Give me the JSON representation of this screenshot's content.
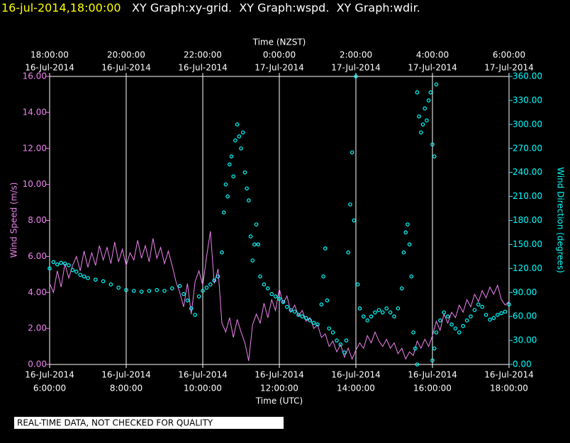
{
  "chart_data": {
    "type": "line",
    "timestamp": "16-jul-2014,18:00:00",
    "title": "XY Graph:xy-grid.  XY Graph:wspd.  XY Graph:wdir.",
    "xlabel": "Time (UTC)",
    "x2label": "Time (NZST)",
    "ylabel": "Wind Speed (m/s)",
    "y2label": "Wind Direction (degrees)",
    "note": "REAL-TIME DATA, NOT CHECKED FOR QUALITY",
    "grid": true,
    "xlim": [
      6,
      18
    ],
    "xticks": [
      {
        "value": 6,
        "label": [
          "16-Jul-2014",
          "6:00:00"
        ]
      },
      {
        "value": 8,
        "label": [
          "16-Jul-2014",
          "8:00:00"
        ]
      },
      {
        "value": 10,
        "label": [
          "16-Jul-2014",
          "10:00:00"
        ]
      },
      {
        "value": 12,
        "label": [
          "16-Jul-2014",
          "12:00:00"
        ]
      },
      {
        "value": 14,
        "label": [
          "16-Jul-2014",
          "14:00:00"
        ]
      },
      {
        "value": 16,
        "label": [
          "16-Jul-2014",
          "16:00:00"
        ]
      },
      {
        "value": 18,
        "label": [
          "16-Jul-2014",
          "18:00:00"
        ]
      }
    ],
    "x2ticks": [
      {
        "value": 6,
        "label": [
          "18:00:00",
          "16-Jul-2014"
        ]
      },
      {
        "value": 8,
        "label": [
          "20:00:00",
          "16-Jul-2014"
        ]
      },
      {
        "value": 10,
        "label": [
          "22:00:00",
          "16-Jul-2014"
        ]
      },
      {
        "value": 12,
        "label": [
          "0:00:00",
          "17-Jul-2014"
        ]
      },
      {
        "value": 14,
        "label": [
          "2:00:00",
          "17-Jul-2014"
        ]
      },
      {
        "value": 16,
        "label": [
          "4:00:00",
          "17-Jul-2014"
        ]
      },
      {
        "value": 18,
        "label": [
          "6:00:00",
          "17-Jul-2014"
        ]
      }
    ],
    "ylim": [
      0,
      16
    ],
    "yticks": [
      {
        "value": 0,
        "label": "0.00"
      },
      {
        "value": 2,
        "label": "2.00"
      },
      {
        "value": 4,
        "label": "4.00"
      },
      {
        "value": 6,
        "label": "6.00"
      },
      {
        "value": 8,
        "label": "8.00"
      },
      {
        "value": 10,
        "label": "10.00"
      },
      {
        "value": 12,
        "label": "12.00"
      },
      {
        "value": 14,
        "label": "14.00"
      },
      {
        "value": 16,
        "label": "16.00"
      }
    ],
    "y2lim": [
      0,
      360
    ],
    "y2ticks": [
      {
        "value": 0,
        "label": "0.00"
      },
      {
        "value": 30,
        "label": "30.00"
      },
      {
        "value": 60,
        "label": "60.00"
      },
      {
        "value": 90,
        "label": "90.00"
      },
      {
        "value": 120,
        "label": "120.00"
      },
      {
        "value": 150,
        "label": "150.00"
      },
      {
        "value": 180,
        "label": "180.00"
      },
      {
        "value": 210,
        "label": "210.00"
      },
      {
        "value": 240,
        "label": "240.00"
      },
      {
        "value": 270,
        "label": "270.00"
      },
      {
        "value": 300,
        "label": "300.00"
      },
      {
        "value": 330,
        "label": "330.00"
      },
      {
        "value": 360,
        "label": "360.00"
      }
    ],
    "series": [
      {
        "type": "line",
        "color": "#ee82ee",
        "axis": "y",
        "x": [
          6.0,
          6.1,
          6.2,
          6.3,
          6.4,
          6.5,
          6.6,
          6.7,
          6.8,
          6.9,
          7.0,
          7.1,
          7.2,
          7.3,
          7.4,
          7.5,
          7.6,
          7.7,
          7.8,
          7.9,
          8.0,
          8.1,
          8.2,
          8.3,
          8.4,
          8.5,
          8.6,
          8.7,
          8.8,
          8.9,
          9.0,
          9.1,
          9.2,
          9.3,
          9.4,
          9.5,
          9.6,
          9.7,
          9.8,
          9.9,
          10.0,
          10.1,
          10.2,
          10.3,
          10.4,
          10.5,
          10.6,
          10.7,
          10.8,
          10.9,
          11.0,
          11.1,
          11.2,
          11.3,
          11.4,
          11.5,
          11.6,
          11.7,
          11.8,
          11.9,
          12.0,
          12.1,
          12.2,
          12.3,
          12.4,
          12.5,
          12.6,
          12.7,
          12.8,
          12.9,
          13.0,
          13.1,
          13.2,
          13.3,
          13.4,
          13.5,
          13.6,
          13.7,
          13.8,
          13.9,
          14.0,
          14.1,
          14.2,
          14.3,
          14.4,
          14.5,
          14.6,
          14.7,
          14.8,
          14.9,
          15.0,
          15.1,
          15.2,
          15.3,
          15.4,
          15.5,
          15.6,
          15.7,
          15.8,
          15.9,
          16.0,
          16.1,
          16.2,
          16.3,
          16.4,
          16.5,
          16.6,
          16.7,
          16.8,
          16.9,
          17.0,
          17.1,
          17.2,
          17.3,
          17.4,
          17.5,
          17.6,
          17.7,
          17.8,
          17.9,
          18.0
        ],
        "values": [
          4.5,
          4.0,
          5.2,
          4.3,
          5.6,
          4.8,
          5.5,
          6.0,
          5.2,
          6.3,
          5.4,
          6.2,
          5.5,
          6.6,
          5.8,
          6.5,
          5.6,
          6.8,
          5.7,
          6.4,
          5.5,
          6.2,
          5.8,
          6.9,
          5.9,
          6.6,
          5.7,
          7.0,
          5.9,
          6.5,
          5.6,
          6.3,
          5.5,
          4.6,
          4.0,
          3.2,
          4.5,
          2.8,
          4.6,
          5.2,
          4.4,
          6.0,
          7.4,
          4.5,
          5.3,
          2.3,
          1.8,
          2.6,
          1.5,
          2.5,
          1.8,
          1.2,
          0.2,
          2.2,
          2.8,
          2.3,
          3.4,
          2.6,
          3.6,
          3.0,
          4.2,
          3.4,
          3.8,
          2.9,
          3.3,
          2.7,
          3.0,
          2.4,
          2.6,
          2.0,
          2.2,
          1.5,
          1.7,
          1.0,
          1.3,
          0.7,
          1.1,
          0.4,
          0.9,
          0.3,
          0.8,
          1.2,
          0.9,
          1.6,
          1.2,
          1.8,
          1.3,
          1.0,
          1.4,
          0.9,
          1.2,
          0.6,
          0.9,
          0.3,
          0.7,
          0.5,
          1.3,
          0.9,
          1.4,
          1.0,
          1.6,
          2.4,
          1.9,
          2.8,
          2.3,
          2.9,
          2.6,
          3.3,
          2.9,
          3.6,
          3.2,
          3.9,
          3.5,
          4.1,
          3.7,
          4.3,
          3.9,
          4.4,
          3.6,
          3.3,
          3.5
        ]
      },
      {
        "type": "scatter",
        "color": "#00ffff",
        "axis": "y2",
        "x": [
          6.0,
          6.1,
          6.2,
          6.3,
          6.4,
          6.5,
          6.6,
          6.7,
          6.8,
          6.9,
          7.0,
          7.2,
          7.4,
          7.6,
          7.8,
          8.0,
          8.2,
          8.4,
          8.6,
          8.8,
          9.0,
          9.2,
          9.4,
          9.5,
          9.6,
          9.7,
          9.8,
          9.9,
          10.0,
          10.1,
          10.2,
          10.3,
          10.4,
          10.5,
          10.55,
          10.6,
          10.65,
          10.7,
          10.75,
          10.8,
          10.85,
          10.9,
          10.95,
          11.0,
          11.05,
          11.1,
          11.15,
          11.2,
          11.25,
          11.3,
          11.35,
          11.4,
          11.45,
          11.5,
          11.6,
          11.7,
          11.8,
          11.9,
          12.0,
          12.1,
          12.2,
          12.3,
          12.4,
          12.5,
          12.6,
          12.7,
          12.8,
          12.9,
          13.0,
          13.1,
          13.15,
          13.2,
          13.25,
          13.3,
          13.4,
          13.5,
          13.6,
          13.7,
          13.75,
          13.8,
          13.85,
          13.9,
          13.95,
          14.0,
          14.05,
          14.1,
          14.2,
          14.3,
          14.4,
          14.5,
          14.6,
          14.7,
          14.8,
          14.9,
          15.0,
          15.1,
          15.2,
          15.25,
          15.3,
          15.35,
          15.4,
          15.45,
          15.5,
          15.55,
          15.6,
          15.6,
          15.65,
          15.7,
          15.75,
          15.8,
          15.85,
          15.9,
          15.95,
          16.0,
          16.05,
          16.1,
          16.0,
          16.05,
          16.1,
          16.2,
          16.3,
          16.4,
          16.5,
          16.6,
          16.7,
          16.8,
          16.9,
          17.0,
          17.1,
          17.2,
          17.3,
          17.4,
          17.5,
          17.6,
          17.7,
          17.8,
          17.9,
          18.0
        ],
        "values": [
          120,
          128,
          125,
          127,
          126,
          124,
          118,
          116,
          112,
          110,
          108,
          106,
          104,
          100,
          96,
          93,
          92,
          91,
          92,
          93,
          92,
          95,
          98,
          88,
          80,
          70,
          62,
          85,
          92,
          96,
          100,
          105,
          110,
          140,
          190,
          225,
          210,
          250,
          260,
          235,
          280,
          300,
          285,
          270,
          290,
          240,
          220,
          205,
          160,
          130,
          150,
          175,
          150,
          110,
          100,
          95,
          88,
          85,
          82,
          78,
          72,
          68,
          66,
          62,
          60,
          58,
          55,
          52,
          50,
          75,
          110,
          145,
          80,
          45,
          40,
          30,
          25,
          15,
          30,
          140,
          200,
          265,
          180,
          360,
          100,
          70,
          60,
          55,
          60,
          65,
          68,
          65,
          70,
          65,
          60,
          70,
          95,
          140,
          165,
          175,
          150,
          110,
          40,
          20,
          0,
          340,
          310,
          290,
          300,
          320,
          305,
          330,
          340,
          275,
          260,
          350,
          5,
          20,
          40,
          55,
          65,
          60,
          50,
          45,
          40,
          48,
          55,
          60,
          68,
          75,
          72,
          62,
          56,
          58,
          62,
          64,
          66,
          75
        ]
      }
    ]
  }
}
